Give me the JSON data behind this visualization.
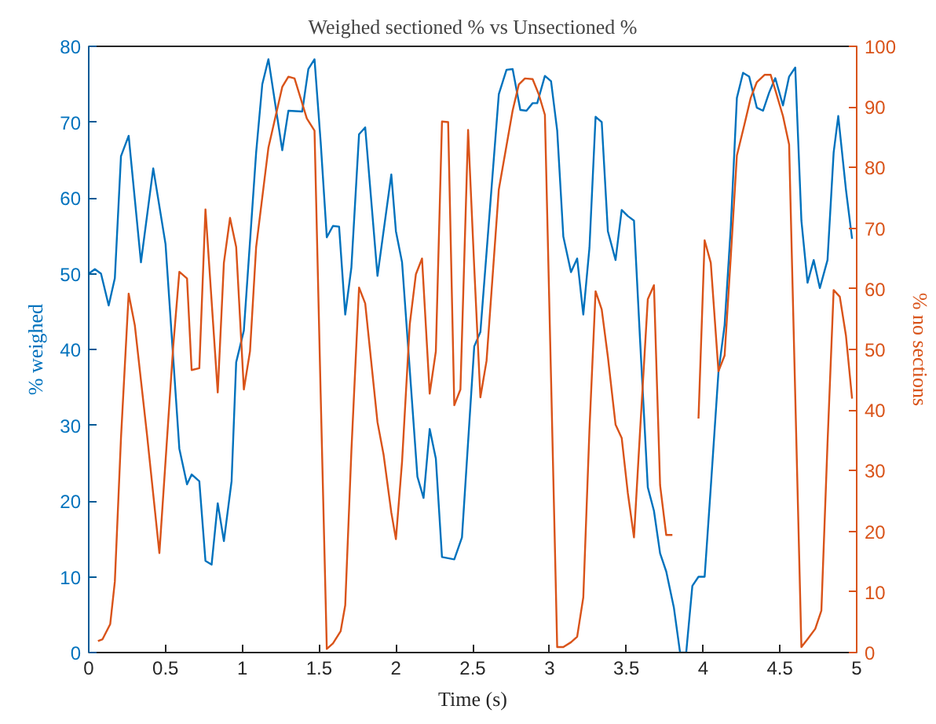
{
  "chart_data": {
    "type": "line",
    "title": "Weighed sectioned % vs Unsectioned %",
    "xlabel": "Time (s)",
    "ylabel": "% weighed",
    "y2label": "% no sections",
    "xlim": [
      0,
      5
    ],
    "xticks": [
      0,
      0.5,
      1,
      1.5,
      2,
      2.5,
      3,
      3.5,
      4,
      4.5,
      5
    ],
    "ylim": [
      0,
      80
    ],
    "yticks": [
      0,
      10,
      20,
      30,
      40,
      50,
      60,
      70,
      80
    ],
    "y2lim": [
      0,
      100
    ],
    "y2ticks": [
      0,
      10,
      20,
      30,
      40,
      50,
      60,
      70,
      80,
      90,
      100
    ],
    "grid": false,
    "marker": "none",
    "line_style": "solid",
    "series": [
      {
        "color": "#0072bd",
        "x": [
          0,
          0.04,
          0.08,
          0.13,
          0.17,
          0.21,
          0.26,
          0.34,
          0.42,
          0.5,
          0.59,
          0.64,
          0.67,
          0.72,
          0.76,
          0.8,
          0.84,
          0.88,
          0.93,
          0.96,
          1.01,
          1.09,
          1.13,
          1.17,
          1.26,
          1.3,
          1.39,
          1.43,
          1.47,
          1.51,
          1.55,
          1.59,
          1.63,
          1.67,
          1.71,
          1.76,
          1.8,
          1.88,
          1.97,
          2.0,
          2.04,
          2.14,
          2.18,
          2.22,
          2.26,
          2.3,
          2.38,
          2.43,
          2.51,
          2.55,
          2.67,
          2.72,
          2.76,
          2.81,
          2.85,
          2.89,
          2.92,
          2.97,
          3.01,
          3.05,
          3.09,
          3.14,
          3.18,
          3.22,
          3.26,
          3.3,
          3.34,
          3.38,
          3.43,
          3.47,
          3.51,
          3.55,
          3.59,
          3.64,
          3.68,
          3.72,
          3.76,
          3.81,
          3.85,
          3.89,
          3.93,
          3.97,
          4.01,
          4.05,
          4.1,
          4.14,
          4.18,
          4.22,
          4.26,
          4.3,
          4.35,
          4.39,
          4.43,
          4.47,
          4.52,
          4.56,
          4.6,
          4.64,
          4.68,
          4.72,
          4.76,
          4.81,
          4.85,
          4.88,
          4.93,
          4.97
        ],
        "values": [
          50,
          50.6,
          50,
          45.8,
          49.4,
          65.5,
          68.2,
          51.5,
          63.9,
          53.9,
          26.9,
          22.2,
          23.5,
          22.6,
          12.1,
          11.6,
          19.7,
          14.7,
          22.6,
          38.3,
          42.5,
          66,
          75,
          78.3,
          66.3,
          71.5,
          71.4,
          77,
          78.3,
          67.4,
          54.8,
          56.3,
          56.2,
          44.6,
          50.8,
          68.4,
          69.3,
          49.7,
          63.1,
          55.6,
          51.5,
          23.2,
          20.4,
          29.5,
          25.6,
          12.6,
          12.3,
          15.2,
          40.4,
          42.3,
          73.7,
          76.9,
          77,
          71.6,
          71.5,
          72.5,
          72.5,
          76.1,
          75.4,
          68.9,
          54.9,
          50.2,
          52,
          44.6,
          53.4,
          70.7,
          70,
          55.6,
          51.8,
          58.4,
          57.6,
          57,
          41.1,
          21.8,
          18.7,
          13.1,
          10.7,
          5.9,
          0,
          0,
          8.8,
          10,
          10,
          21.8,
          37,
          43.2,
          56,
          73.2,
          76.5,
          76,
          71.9,
          71.5,
          73.9,
          75.8,
          72.2,
          76,
          77.2,
          57,
          48.8,
          51.8,
          48.1,
          51.8,
          66,
          70.8,
          61.1,
          54.6
        ]
      },
      {
        "color": "#d95319",
        "axis": "y2",
        "x": [
          0.06,
          0.09,
          0.14,
          0.17,
          0.21,
          0.26,
          0.3,
          0.38,
          0.46,
          0.55,
          0.59,
          0.64,
          0.67,
          0.72,
          0.76,
          0.84,
          0.88,
          0.92,
          0.96,
          1.01,
          1.05,
          1.09,
          1.17,
          1.26,
          1.3,
          1.34,
          1.42,
          1.47,
          1.51,
          1.55,
          1.59,
          1.64,
          1.67,
          1.71,
          1.76,
          1.8,
          1.88,
          1.92,
          1.97,
          2.0,
          2.04,
          2.09,
          2.13,
          2.17,
          2.22,
          2.26,
          2.3,
          2.34,
          2.38,
          2.42,
          2.47,
          2.51,
          2.55,
          2.59,
          2.67,
          2.76,
          2.8,
          2.84,
          2.89,
          2.93,
          2.97,
          3.01,
          3.05,
          3.09,
          3.14,
          3.18,
          3.22,
          3.26,
          3.3,
          3.34,
          3.38,
          3.43,
          3.47,
          3.51,
          3.55,
          3.59,
          3.64,
          3.68,
          3.72,
          3.76,
          3.8,
          3.88,
          3.97,
          4.01,
          4.05,
          4.1,
          4.14,
          4.18,
          4.22,
          4.27,
          4.31,
          4.35,
          4.4,
          4.44,
          4.47,
          4.52,
          4.56,
          4.64,
          4.68,
          4.73,
          4.77,
          4.81,
          4.85,
          4.89,
          4.93,
          4.97
        ],
        "values": [
          1.9,
          2.2,
          4.7,
          11.7,
          35.4,
          59.2,
          54,
          35.8,
          16.4,
          50.5,
          62.8,
          61.7,
          46.6,
          46.9,
          73.1,
          42.9,
          64.3,
          71.7,
          66.9,
          43.4,
          49.7,
          66.9,
          83.3,
          93.3,
          95,
          94.7,
          88.1,
          86.1,
          42.7,
          0.6,
          1.5,
          3.5,
          7.8,
          33.2,
          60.2,
          57.6,
          38,
          32.6,
          23.1,
          18.7,
          31.5,
          54.1,
          62.4,
          65,
          42.7,
          49.7,
          87.6,
          87.5,
          40.8,
          43.4,
          86.2,
          63.5,
          42.1,
          48.1,
          76.4,
          89.4,
          93.7,
          94.7,
          94.6,
          92.1,
          88.7,
          45.3,
          0.9,
          0.9,
          1.7,
          2.6,
          9.1,
          36.7,
          59.6,
          56.6,
          48.8,
          37.6,
          35.4,
          26.3,
          19,
          36.7,
          58.3,
          60.6,
          27.6,
          19.4,
          19.4,
          null,
          38.6,
          68,
          64.3,
          46.4,
          49,
          65.2,
          82,
          87.2,
          91.5,
          94.1,
          95.3,
          95.3,
          92.8,
          88.5,
          83.8,
          0.9,
          2.2,
          3.9,
          6.9,
          34.5,
          59.8,
          58.7,
          52.3,
          41.9
        ]
      }
    ]
  }
}
